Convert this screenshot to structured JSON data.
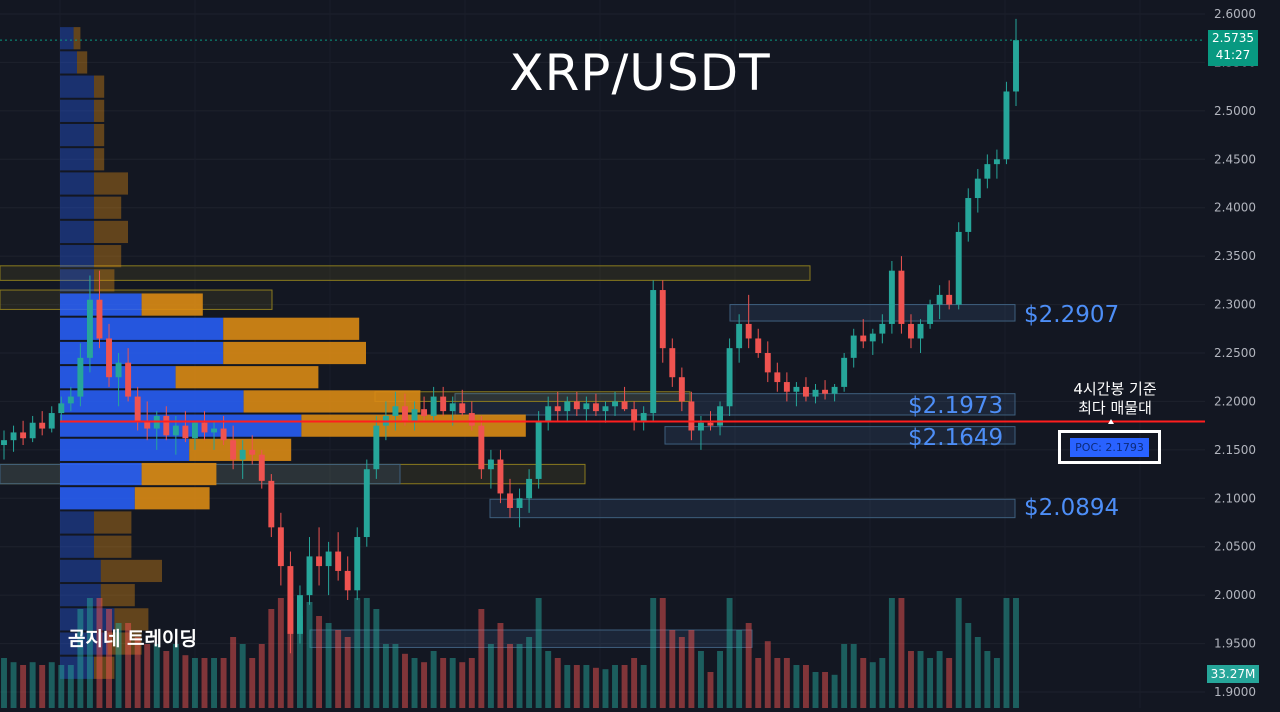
{
  "title": "XRP/USDT",
  "watermark": "곰지네 트레이딩",
  "current_price": {
    "price": "2.5735",
    "countdown": "41:27"
  },
  "volume_label": "33.27M",
  "poc": {
    "text": "POC: 2.1793",
    "note_line1": "4시간봉 기준",
    "note_line2": "최다 매물대",
    "value": 2.1793
  },
  "levels": [
    {
      "value": 2.2907,
      "label": "$2.2907"
    },
    {
      "value": 2.1973,
      "label": "$2.1973"
    },
    {
      "value": 2.1649,
      "label": "$2.1649"
    },
    {
      "value": 2.0894,
      "label": "$2.0894"
    }
  ],
  "colors": {
    "background": "#131722",
    "up": "#26a69a",
    "down": "#ef5350",
    "poc_line": "#ff1e1e",
    "label_blue": "#4d8ef7",
    "vp_blue": "#2962ff",
    "vp_orange": "#d98a14"
  },
  "chart_data": {
    "type": "candlestick",
    "title": "XRP/USDT",
    "timeframe": "4H",
    "ylim": [
      1.9,
      2.6
    ],
    "y_ticks": [
      "2.6000",
      "2.5500",
      "2.5000",
      "2.4500",
      "2.4000",
      "2.3500",
      "2.3000",
      "2.2500",
      "2.2000",
      "2.1500",
      "2.1000",
      "2.0500",
      "2.0000",
      "1.9500",
      "1.9000"
    ],
    "grid": true,
    "ohlc": [
      [
        2.155,
        2.17,
        2.14,
        2.16
      ],
      [
        2.16,
        2.175,
        2.148,
        2.168
      ],
      [
        2.168,
        2.18,
        2.155,
        2.162
      ],
      [
        2.162,
        2.185,
        2.158,
        2.178
      ],
      [
        2.178,
        2.19,
        2.165,
        2.172
      ],
      [
        2.172,
        2.195,
        2.168,
        2.188
      ],
      [
        2.188,
        2.205,
        2.18,
        2.198
      ],
      [
        2.198,
        2.215,
        2.19,
        2.205
      ],
      [
        2.205,
        2.26,
        2.195,
        2.245
      ],
      [
        2.245,
        2.33,
        2.23,
        2.305
      ],
      [
        2.305,
        2.335,
        2.255,
        2.265
      ],
      [
        2.265,
        2.28,
        2.215,
        2.225
      ],
      [
        2.225,
        2.25,
        2.195,
        2.24
      ],
      [
        2.24,
        2.255,
        2.2,
        2.205
      ],
      [
        2.205,
        2.215,
        2.17,
        2.18
      ],
      [
        2.18,
        2.2,
        2.16,
        2.172
      ],
      [
        2.172,
        2.19,
        2.15,
        2.185
      ],
      [
        2.185,
        2.195,
        2.16,
        2.165
      ],
      [
        2.165,
        2.185,
        2.145,
        2.175
      ],
      [
        2.175,
        2.19,
        2.158,
        2.162
      ],
      [
        2.162,
        2.18,
        2.15,
        2.178
      ],
      [
        2.178,
        2.19,
        2.16,
        2.168
      ],
      [
        2.168,
        2.18,
        2.15,
        2.172
      ],
      [
        2.172,
        2.185,
        2.155,
        2.16
      ],
      [
        2.16,
        2.175,
        2.13,
        2.14
      ],
      [
        2.14,
        2.16,
        2.12,
        2.15
      ],
      [
        2.15,
        2.165,
        2.135,
        2.145
      ],
      [
        2.145,
        2.15,
        2.11,
        2.118
      ],
      [
        2.118,
        2.125,
        2.06,
        2.07
      ],
      [
        2.07,
        2.085,
        2.01,
        2.03
      ],
      [
        2.03,
        2.045,
        1.94,
        1.96
      ],
      [
        1.96,
        2.01,
        1.95,
        2.0
      ],
      [
        2.0,
        2.06,
        1.99,
        2.04
      ],
      [
        2.04,
        2.07,
        2.01,
        2.03
      ],
      [
        2.03,
        2.055,
        2.0,
        2.045
      ],
      [
        2.045,
        2.065,
        2.015,
        2.025
      ],
      [
        2.025,
        2.04,
        1.995,
        2.005
      ],
      [
        2.005,
        2.07,
        1.995,
        2.06
      ],
      [
        2.06,
        2.14,
        2.05,
        2.13
      ],
      [
        2.13,
        2.185,
        2.12,
        2.175
      ],
      [
        2.175,
        2.2,
        2.16,
        2.185
      ],
      [
        2.185,
        2.21,
        2.17,
        2.195
      ],
      [
        2.195,
        2.208,
        2.175,
        2.18
      ],
      [
        2.18,
        2.2,
        2.17,
        2.192
      ],
      [
        2.192,
        2.205,
        2.178,
        2.185
      ],
      [
        2.185,
        2.215,
        2.18,
        2.205
      ],
      [
        2.205,
        2.215,
        2.185,
        2.19
      ],
      [
        2.19,
        2.205,
        2.175,
        2.198
      ],
      [
        2.198,
        2.212,
        2.185,
        2.188
      ],
      [
        2.188,
        2.2,
        2.17,
        2.175
      ],
      [
        2.175,
        2.185,
        2.12,
        2.13
      ],
      [
        2.13,
        2.15,
        2.11,
        2.14
      ],
      [
        2.14,
        2.15,
        2.095,
        2.105
      ],
      [
        2.105,
        2.12,
        2.08,
        2.09
      ],
      [
        2.09,
        2.11,
        2.07,
        2.1
      ],
      [
        2.1,
        2.13,
        2.085,
        2.12
      ],
      [
        2.12,
        2.19,
        2.11,
        2.18
      ],
      [
        2.18,
        2.205,
        2.17,
        2.195
      ],
      [
        2.195,
        2.21,
        2.18,
        2.19
      ],
      [
        2.19,
        2.205,
        2.18,
        2.2
      ],
      [
        2.2,
        2.21,
        2.185,
        2.192
      ],
      [
        2.192,
        2.205,
        2.18,
        2.198
      ],
      [
        2.198,
        2.208,
        2.185,
        2.19
      ],
      [
        2.19,
        2.2,
        2.178,
        2.195
      ],
      [
        2.195,
        2.21,
        2.185,
        2.2
      ],
      [
        2.2,
        2.215,
        2.19,
        2.192
      ],
      [
        2.192,
        2.2,
        2.17,
        2.18
      ],
      [
        2.18,
        2.195,
        2.17,
        2.188
      ],
      [
        2.188,
        2.325,
        2.18,
        2.315
      ],
      [
        2.315,
        2.325,
        2.24,
        2.255
      ],
      [
        2.255,
        2.265,
        2.215,
        2.225
      ],
      [
        2.225,
        2.235,
        2.19,
        2.2
      ],
      [
        2.2,
        2.21,
        2.16,
        2.17
      ],
      [
        2.17,
        2.185,
        2.15,
        2.178
      ],
      [
        2.178,
        2.19,
        2.17,
        2.175
      ],
      [
        2.175,
        2.2,
        2.165,
        2.195
      ],
      [
        2.195,
        2.265,
        2.185,
        2.255
      ],
      [
        2.255,
        2.29,
        2.24,
        2.28
      ],
      [
        2.28,
        2.31,
        2.255,
        2.265
      ],
      [
        2.265,
        2.275,
        2.245,
        2.25
      ],
      [
        2.25,
        2.262,
        2.22,
        2.23
      ],
      [
        2.23,
        2.24,
        2.21,
        2.22
      ],
      [
        2.22,
        2.23,
        2.2,
        2.21
      ],
      [
        2.21,
        2.22,
        2.195,
        2.215
      ],
      [
        2.215,
        2.225,
        2.2,
        2.205
      ],
      [
        2.205,
        2.218,
        2.198,
        2.212
      ],
      [
        2.212,
        2.222,
        2.202,
        2.208
      ],
      [
        2.208,
        2.218,
        2.2,
        2.215
      ],
      [
        2.215,
        2.25,
        2.21,
        2.245
      ],
      [
        2.245,
        2.275,
        2.235,
        2.268
      ],
      [
        2.268,
        2.285,
        2.255,
        2.262
      ],
      [
        2.262,
        2.275,
        2.248,
        2.27
      ],
      [
        2.27,
        2.29,
        2.26,
        2.28
      ],
      [
        2.28,
        2.345,
        2.27,
        2.335
      ],
      [
        2.335,
        2.35,
        2.27,
        2.28
      ],
      [
        2.28,
        2.29,
        2.255,
        2.265
      ],
      [
        2.265,
        2.285,
        2.25,
        2.28
      ],
      [
        2.28,
        2.305,
        2.275,
        2.3
      ],
      [
        2.3,
        2.32,
        2.285,
        2.31
      ],
      [
        2.31,
        2.325,
        2.295,
        2.3
      ],
      [
        2.3,
        2.385,
        2.295,
        2.375
      ],
      [
        2.375,
        2.42,
        2.365,
        2.41
      ],
      [
        2.41,
        2.44,
        2.395,
        2.43
      ],
      [
        2.43,
        2.455,
        2.42,
        2.445
      ],
      [
        2.445,
        2.46,
        2.43,
        2.45
      ],
      [
        2.45,
        2.53,
        2.445,
        2.52
      ],
      [
        2.52,
        2.595,
        2.505,
        2.573
      ]
    ],
    "volume_profile": {
      "poc": 2.1793,
      "rows": [
        {
          "price": 1.925,
          "up": 0.1,
          "down": 0.06
        },
        {
          "price": 1.95,
          "up": 0.14,
          "down": 0.1
        },
        {
          "price": 1.975,
          "up": 0.16,
          "down": 0.1
        },
        {
          "price": 2.0,
          "up": 0.12,
          "down": 0.1
        },
        {
          "price": 2.025,
          "up": 0.12,
          "down": 0.18
        },
        {
          "price": 2.05,
          "up": 0.1,
          "down": 0.11
        },
        {
          "price": 2.075,
          "up": 0.1,
          "down": 0.11
        },
        {
          "price": 2.1,
          "up": 0.22,
          "down": 0.22
        },
        {
          "price": 2.125,
          "up": 0.24,
          "down": 0.22
        },
        {
          "price": 2.15,
          "up": 0.38,
          "down": 0.3
        },
        {
          "price": 2.175,
          "up": 0.71,
          "down": 0.66
        },
        {
          "price": 2.2,
          "up": 0.54,
          "down": 0.52
        },
        {
          "price": 2.225,
          "up": 0.34,
          "down": 0.42
        },
        {
          "price": 2.25,
          "up": 0.48,
          "down": 0.42
        },
        {
          "price": 2.275,
          "up": 0.48,
          "down": 0.4
        },
        {
          "price": 2.3,
          "up": 0.24,
          "down": 0.18
        },
        {
          "price": 2.325,
          "up": 0.1,
          "down": 0.06
        },
        {
          "price": 2.35,
          "up": 0.1,
          "down": 0.08
        },
        {
          "price": 2.375,
          "up": 0.1,
          "down": 0.1
        },
        {
          "price": 2.4,
          "up": 0.1,
          "down": 0.08
        },
        {
          "price": 2.425,
          "up": 0.1,
          "down": 0.1
        },
        {
          "price": 2.45,
          "up": 0.1,
          "down": 0.03
        },
        {
          "price": 2.475,
          "up": 0.1,
          "down": 0.03
        },
        {
          "price": 2.5,
          "up": 0.1,
          "down": 0.03
        },
        {
          "price": 2.525,
          "up": 0.1,
          "down": 0.03
        },
        {
          "price": 2.55,
          "up": 0.05,
          "down": 0.03
        },
        {
          "price": 2.575,
          "up": 0.04,
          "down": 0.02
        }
      ]
    },
    "zones": [
      {
        "from": 2.325,
        "to": 2.34,
        "color": "yellow"
      },
      {
        "from": 2.295,
        "to": 2.315,
        "color": "yellow"
      },
      {
        "from": 2.283,
        "to": 2.3,
        "color": "blue"
      },
      {
        "from": 2.186,
        "to": 2.208,
        "color": "blue"
      },
      {
        "from": 2.2,
        "to": 2.21,
        "color": "yellow"
      },
      {
        "from": 2.156,
        "to": 2.174,
        "color": "blue"
      },
      {
        "from": 2.115,
        "to": 2.135,
        "color": "yellow"
      },
      {
        "from": 2.115,
        "to": 2.135,
        "color": "blue"
      },
      {
        "from": 2.08,
        "to": 2.099,
        "color": "blue"
      },
      {
        "from": 1.946,
        "to": 1.964,
        "color": "blue"
      }
    ]
  }
}
